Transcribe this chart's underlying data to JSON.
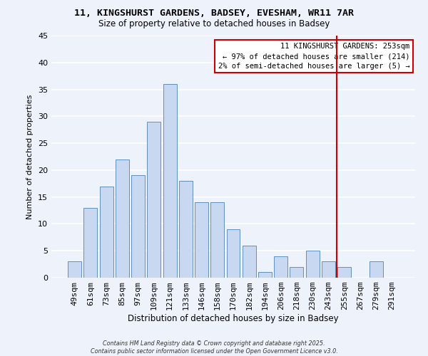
{
  "title_line1": "11, KINGSHURST GARDENS, BADSEY, EVESHAM, WR11 7AR",
  "title_line2": "Size of property relative to detached houses in Badsey",
  "xlabel": "Distribution of detached houses by size in Badsey",
  "ylabel": "Number of detached properties",
  "bar_labels": [
    "49sqm",
    "61sqm",
    "73sqm",
    "85sqm",
    "97sqm",
    "109sqm",
    "121sqm",
    "133sqm",
    "146sqm",
    "158sqm",
    "170sqm",
    "182sqm",
    "194sqm",
    "206sqm",
    "218sqm",
    "230sqm",
    "243sqm",
    "255sqm",
    "267sqm",
    "279sqm",
    "291sqm"
  ],
  "bar_heights": [
    3,
    13,
    17,
    22,
    19,
    29,
    36,
    18,
    14,
    14,
    9,
    6,
    1,
    4,
    2,
    5,
    3,
    2,
    0,
    3,
    0
  ],
  "bar_color": "#c8d8f0",
  "bar_edge_color": "#6090c0",
  "vline_color": "#cc0000",
  "vline_index": 17,
  "ylim": [
    0,
    45
  ],
  "yticks": [
    0,
    5,
    10,
    15,
    20,
    25,
    30,
    35,
    40,
    45
  ],
  "annotation_title": "11 KINGSHURST GARDENS: 253sqm",
  "annotation_line2": "← 97% of detached houses are smaller (214)",
  "annotation_line3": "2% of semi-detached houses are larger (5) →",
  "annotation_box_color": "#ffffff",
  "annotation_box_edge": "#cc0000",
  "footer_line1": "Contains HM Land Registry data © Crown copyright and database right 2025.",
  "footer_line2": "Contains public sector information licensed under the Open Government Licence v3.0.",
  "background_color": "#eef2fb",
  "grid_color": "#ffffff",
  "title_font": "DejaVu Sans Mono",
  "body_font": "DejaVu Sans"
}
